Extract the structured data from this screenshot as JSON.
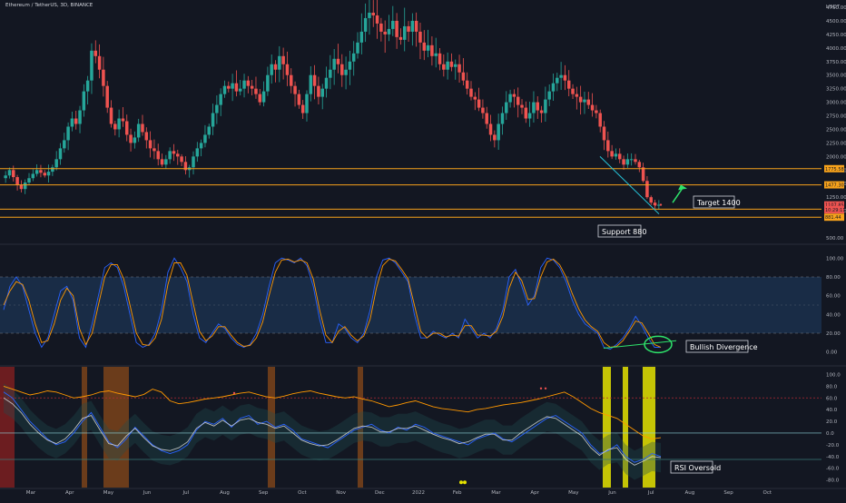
{
  "header": {
    "symbol_text": "Ethereum / TetherUS, 3D, BINANCE"
  },
  "colors": {
    "background": "#131722",
    "up_candle": "#26a69a",
    "down_candle": "#ef5350",
    "orange_level": "#f7a21b",
    "blue_line": "#2962ff",
    "orange_line": "#ff9800",
    "yellow_bar": "#e5e300",
    "brown_bar": "#8a4a19",
    "red_bar": "#8b2020",
    "teal_line": "#26c6da",
    "green_arrow": "#2ee36b"
  },
  "chart_data": [
    {
      "type": "candlestick",
      "panel": "price",
      "y_unit": "USDT",
      "ylim": [
        500,
        4750
      ],
      "y_ticks": [
        500,
        1000,
        1250,
        1500,
        1750,
        2000,
        2250,
        2500,
        2750,
        3000,
        3250,
        3500,
        3750,
        4000,
        4250,
        4500,
        4750
      ],
      "y_tick_labels": [
        "500.00",
        "1000.00",
        "1250.00",
        "1500.00",
        "1750.00",
        "2000.00",
        "2250.00",
        "2500.00",
        "2750.00",
        "3000.00",
        "3250.00",
        "3500.00",
        "3750.00",
        "4000.00",
        "4250.00",
        "4500.00",
        "4750.00"
      ],
      "price_path_close": [
        1650,
        1750,
        1620,
        1480,
        1400,
        1520,
        1600,
        1680,
        1750,
        1700,
        1650,
        1720,
        1800,
        1950,
        2150,
        2300,
        2550,
        2700,
        2600,
        2850,
        3200,
        3400,
        3950,
        3850,
        3600,
        3300,
        2900,
        2600,
        2500,
        2700,
        2650,
        2400,
        2250,
        2350,
        2600,
        2450,
        2300,
        2150,
        2100,
        1950,
        1850,
        1950,
        2100,
        2050,
        2000,
        1900,
        1750,
        1800,
        2000,
        2150,
        2250,
        2400,
        2550,
        2800,
        2950,
        3150,
        3300,
        3250,
        3350,
        3200,
        3250,
        3400,
        3300,
        3250,
        3150,
        3000,
        3200,
        3500,
        3700,
        3600,
        3850,
        3700,
        3500,
        3300,
        3150,
        2950,
        2800,
        3150,
        3500,
        3300,
        3100,
        3250,
        3450,
        3600,
        3800,
        3700,
        3500,
        3600,
        3750,
        3900,
        4100,
        4300,
        4550,
        4650,
        4600,
        4450,
        4300,
        4250,
        4350,
        4500,
        4200,
        4150,
        4400,
        4300,
        4500,
        4300,
        4100,
        3950,
        4050,
        3850,
        3900,
        3700,
        3600,
        3750,
        3650,
        3700,
        3550,
        3400,
        3250,
        3100,
        3050,
        2900,
        2800,
        2600,
        2400,
        2300,
        2600,
        2800,
        3000,
        3150,
        3100,
        2950,
        2900,
        2700,
        2800,
        3000,
        2850,
        2800,
        3050,
        3200,
        3350,
        3450,
        3500,
        3400,
        3250,
        3150,
        3100,
        3000,
        3050,
        2950,
        2850,
        2800,
        2550,
        2300,
        2100,
        2000,
        2050,
        1950,
        1850,
        1950,
        1950,
        1900,
        1800,
        1550,
        1250,
        1150,
        1100,
        1110
      ],
      "horizontal_levels": [
        {
          "price": 1775.58,
          "label": "1775.58",
          "color": "#f7a21b"
        },
        {
          "price": 1477.3,
          "label": "1477.30",
          "color": "#f7a21b"
        },
        {
          "price": 1029.76,
          "label": "1029.76",
          "color": "#f7a21b"
        },
        {
          "price": 881.44,
          "label": "881.44",
          "color": "#f7a21b"
        }
      ],
      "price_tags": [
        {
          "price": 1107.85,
          "label": "1107.85",
          "color": "#ef5350"
        },
        {
          "price": 1018.21,
          "label": "10:29:11",
          "color": "#ef5350"
        }
      ],
      "annotations": [
        "Target 1400",
        "Support 880"
      ]
    },
    {
      "type": "line",
      "panel": "stochastic_rsi",
      "ylim": [
        -10,
        110
      ],
      "y_ticks": [
        0,
        20,
        40,
        60,
        80,
        100
      ],
      "y_tick_labels": [
        "0.00",
        "20.00",
        "40.00",
        "60.00",
        "80.00",
        "100.00"
      ],
      "band": [
        20,
        80
      ],
      "series": [
        {
          "color": "#2962ff",
          "values": [
            45,
            70,
            80,
            70,
            45,
            20,
            5,
            15,
            40,
            65,
            70,
            55,
            15,
            5,
            30,
            60,
            90,
            95,
            90,
            70,
            40,
            10,
            5,
            8,
            20,
            45,
            85,
            100,
            90,
            75,
            40,
            15,
            10,
            20,
            30,
            25,
            15,
            8,
            5,
            8,
            20,
            40,
            70,
            95,
            100,
            98,
            95,
            100,
            92,
            70,
            35,
            10,
            10,
            30,
            25,
            15,
            10,
            20,
            45,
            80,
            98,
            100,
            95,
            85,
            75,
            40,
            15,
            15,
            22,
            18,
            15,
            20,
            15,
            35,
            25,
            15,
            20,
            15,
            25,
            45,
            80,
            88,
            70,
            50,
            60,
            90,
            100,
            98,
            90,
            75,
            55,
            40,
            30,
            25,
            20,
            5,
            3,
            8,
            15,
            25,
            38,
            28,
            15,
            5,
            5
          ]
        },
        {
          "color": "#ff9800",
          "values": [
            50,
            65,
            75,
            72,
            55,
            30,
            10,
            12,
            30,
            55,
            68,
            60,
            25,
            8,
            20,
            50,
            80,
            93,
            93,
            78,
            50,
            20,
            8,
            7,
            15,
            35,
            72,
            95,
            95,
            82,
            52,
            22,
            12,
            17,
            27,
            27,
            18,
            10,
            6,
            7,
            15,
            32,
            60,
            85,
            98,
            99,
            96,
            98,
            95,
            78,
            45,
            18,
            10,
            22,
            27,
            18,
            12,
            17,
            35,
            68,
            92,
            99,
            97,
            88,
            78,
            50,
            22,
            15,
            20,
            20,
            16,
            18,
            17,
            28,
            28,
            18,
            18,
            17,
            22,
            38,
            68,
            85,
            76,
            56,
            57,
            80,
            96,
            99,
            93,
            80,
            62,
            46,
            34,
            27,
            22,
            10,
            5,
            6,
            12,
            22,
            33,
            31,
            20,
            8,
            5
          ]
        }
      ],
      "annotations": [
        "Bullish Divergence"
      ]
    },
    {
      "type": "line",
      "panel": "rsi_oversold",
      "ylim": [
        -90,
        110
      ],
      "y_ticks": [
        -80,
        -60,
        -40,
        -20,
        0,
        20,
        40,
        60,
        80,
        100
      ],
      "y_tick_labels": [
        "-80.0",
        "-60.0",
        "-40.0",
        "-20.0",
        "0.0",
        "20.0",
        "40.0",
        "60.0",
        "80.0",
        "100.0"
      ],
      "reference_lines": [
        60,
        0,
        -45
      ],
      "series": [
        {
          "color": "#ff9800",
          "values": [
            80,
            75,
            70,
            65,
            68,
            72,
            70,
            65,
            60,
            62,
            65,
            70,
            72,
            68,
            65,
            62,
            66,
            75,
            70,
            55,
            50,
            52,
            55,
            58,
            60,
            62,
            65,
            68,
            70,
            66,
            62,
            60,
            63,
            67,
            70,
            72,
            68,
            65,
            62,
            60,
            62,
            58,
            55,
            50,
            45,
            48,
            52,
            55,
            50,
            45,
            42,
            40,
            38,
            36,
            40,
            42,
            45,
            48,
            50,
            52,
            55,
            58,
            62,
            66,
            70,
            62,
            52,
            42,
            35,
            30,
            25,
            15,
            5,
            -5,
            -10,
            -8
          ]
        },
        {
          "color": "#2962ff",
          "values": [
            70,
            60,
            40,
            20,
            5,
            -10,
            -20,
            -15,
            0,
            20,
            35,
            10,
            -15,
            -25,
            -10,
            10,
            -5,
            -20,
            -30,
            -35,
            -30,
            -20,
            5,
            20,
            15,
            25,
            10,
            25,
            30,
            15,
            20,
            10,
            15,
            5,
            -10,
            -15,
            -20,
            -25,
            -15,
            -5,
            5,
            10,
            15,
            5,
            0,
            10,
            5,
            15,
            10,
            0,
            -5,
            -10,
            -15,
            -20,
            -10,
            -5,
            0,
            -10,
            -15,
            -5,
            5,
            15,
            25,
            30,
            20,
            10,
            0,
            -20,
            -35,
            -30,
            -20,
            -40,
            -50,
            -45,
            -35,
            -40
          ]
        },
        {
          "color": "#e0e0e0",
          "values": [
            60,
            50,
            35,
            15,
            0,
            -12,
            -18,
            -10,
            5,
            25,
            30,
            5,
            -18,
            -22,
            -5,
            8,
            -8,
            -22,
            -28,
            -30,
            -25,
            -15,
            8,
            18,
            12,
            22,
            12,
            22,
            25,
            18,
            15,
            8,
            12,
            0,
            -12,
            -18,
            -22,
            -20,
            -12,
            -2,
            8,
            12,
            10,
            2,
            2,
            8,
            8,
            12,
            5,
            -2,
            -8,
            -12,
            -18,
            -15,
            -8,
            -2,
            -2,
            -12,
            -12,
            0,
            10,
            20,
            28,
            25,
            15,
            5,
            -5,
            -25,
            -38,
            -28,
            -25,
            -45,
            -55,
            -48,
            -40,
            -42
          ]
        }
      ],
      "highlight_columns": [
        {
          "color": "#8b2020",
          "label": ""
        },
        {
          "color": "#8a4a19",
          "label": ""
        },
        {
          "color": "#8a4a19",
          "label": ""
        },
        {
          "color": "#8a4a19",
          "label": ""
        },
        {
          "color": "#8a4a19",
          "label": ""
        },
        {
          "color": "#e5e300",
          "label": ""
        },
        {
          "color": "#e5e300",
          "label": ""
        },
        {
          "color": "#e5e300",
          "label": ""
        }
      ],
      "annotations": [
        "RSI Oversold"
      ]
    }
  ],
  "x_axis": {
    "labels": [
      "Mar",
      "Apr",
      "May",
      "Jun",
      "Jul",
      "Aug",
      "Sep",
      "Oct",
      "Nov",
      "Dec",
      "2022",
      "Feb",
      "Mar",
      "Apr",
      "May",
      "Jun",
      "Jul",
      "Aug",
      "Sep",
      "Oct"
    ]
  }
}
